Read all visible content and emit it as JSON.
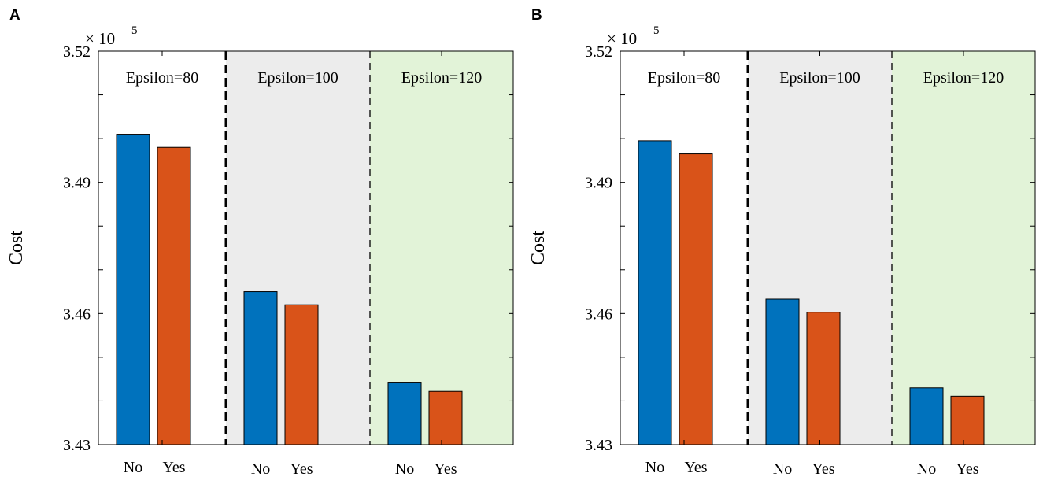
{
  "chart_data": [
    {
      "type": "bar",
      "panel_label": "A",
      "ylabel": "Cost",
      "multiplier": {
        "prefix": "× 10",
        "exponent": "5"
      },
      "ylim": [
        3.43,
        3.52
      ],
      "yticks": [
        3.43,
        3.46,
        3.49,
        3.52
      ],
      "ytick_labels": [
        "3.43",
        "3.46",
        "3.49",
        "3.52"
      ],
      "categories": [
        "No",
        "Yes"
      ],
      "series_colors": {
        "No": "#0072BD",
        "Yes": "#D95319"
      },
      "groups": [
        {
          "name": "Epsilon=80",
          "background": "#ffffff",
          "values": [
            3.501,
            3.498
          ]
        },
        {
          "name": "Epsilon=100",
          "background": "#ececec",
          "values": [
            3.465,
            3.462
          ]
        },
        {
          "name": "Epsilon=120",
          "background": "#e2f3d8",
          "values": [
            3.4443,
            3.4422
          ]
        }
      ]
    },
    {
      "type": "bar",
      "panel_label": "B",
      "ylabel": "Cost",
      "multiplier": {
        "prefix": "× 10",
        "exponent": "5"
      },
      "ylim": [
        3.43,
        3.52
      ],
      "yticks": [
        3.43,
        3.46,
        3.49,
        3.52
      ],
      "ytick_labels": [
        "3.43",
        "3.46",
        "3.49",
        "3.52"
      ],
      "categories": [
        "No",
        "Yes"
      ],
      "series_colors": {
        "No": "#0072BD",
        "Yes": "#D95319"
      },
      "groups": [
        {
          "name": "Epsilon=80",
          "background": "#ffffff",
          "values": [
            3.4995,
            3.4965
          ]
        },
        {
          "name": "Epsilon=100",
          "background": "#ececec",
          "values": [
            3.4633,
            3.4603
          ]
        },
        {
          "name": "Epsilon=120",
          "background": "#e2f3d8",
          "values": [
            3.443,
            3.4411
          ]
        }
      ]
    }
  ]
}
